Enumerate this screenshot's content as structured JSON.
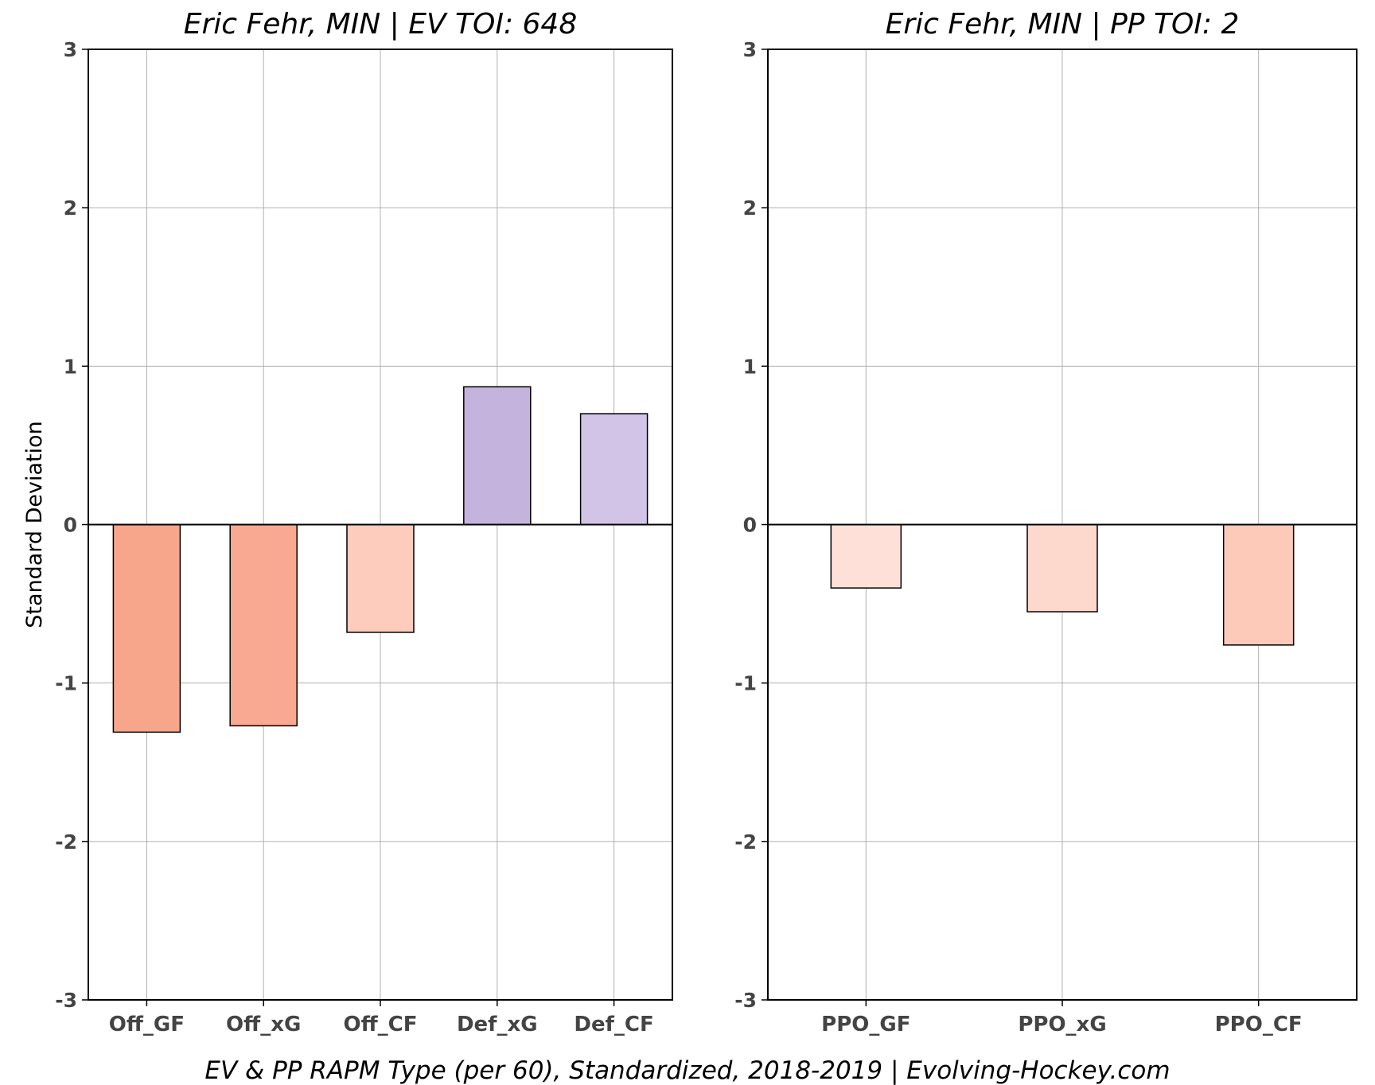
{
  "chart_data": [
    {
      "type": "bar",
      "title": "Eric Fehr, MIN  |  EV TOI: 648",
      "ylabel": "Standard Deviation",
      "ylim": [
        -3,
        3
      ],
      "yticks": [
        -3,
        -2,
        -1,
        0,
        1,
        2,
        3
      ],
      "grid": true,
      "categories": [
        "Off_GF",
        "Off_xG",
        "Off_CF",
        "Def_xG",
        "Def_CF"
      ],
      "values": [
        -1.31,
        -1.27,
        -0.68,
        0.87,
        0.7
      ],
      "colors": [
        "#f7a58b",
        "#f9a892",
        "#fdccbc",
        "#c3b3dd",
        "#d2c4e6"
      ]
    },
    {
      "type": "bar",
      "title": "Eric Fehr, MIN  |  PP TOI: 2",
      "ylabel": "",
      "ylim": [
        -3,
        3
      ],
      "yticks": [
        -3,
        -2,
        -1,
        0,
        1,
        2,
        3
      ],
      "grid": true,
      "categories": [
        "PPO_GF",
        "PPO_xG",
        "PPO_CF"
      ],
      "values": [
        -0.4,
        -0.55,
        -0.76
      ],
      "colors": [
        "#fee0d8",
        "#fdd8cc",
        "#fdc9b9"
      ]
    }
  ],
  "footer": "EV & PP RAPM Type (per 60), Standardized, 2018-2019    |    Evolving-Hockey.com"
}
